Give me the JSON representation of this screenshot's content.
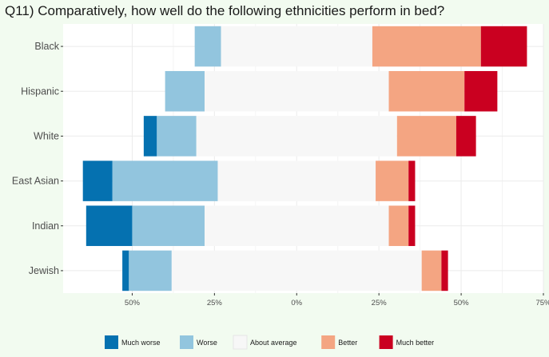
{
  "title": "Q11) Comparatively, how well do the following ethnicities perform in bed?",
  "chart_data": {
    "type": "bar",
    "orientation": "horizontal-diverging",
    "categories": [
      "Black",
      "Hispanic",
      "White",
      "East Asian",
      "Indian",
      "Jewish"
    ],
    "xlim": [
      -71,
      75
    ],
    "x_ticks": [
      -50,
      -25,
      0,
      25,
      50,
      75
    ],
    "x_tick_labels": [
      "50%",
      "25%",
      "0%",
      "25%",
      "50%",
      "75%"
    ],
    "grid": true,
    "legend_position": "bottom",
    "series": [
      {
        "name": "Much worse",
        "color": "#0571b0",
        "values": [
          0,
          0,
          4,
          9,
          14,
          2
        ]
      },
      {
        "name": "Worse",
        "color": "#92c5de",
        "values": [
          8,
          12,
          12,
          32,
          22,
          13
        ]
      },
      {
        "name": "About average",
        "color": "#f7f7f7",
        "values": [
          46,
          56,
          61,
          48,
          56,
          76
        ]
      },
      {
        "name": "Better",
        "color": "#f4a582",
        "values": [
          33,
          23,
          18,
          10,
          6,
          6
        ]
      },
      {
        "name": "Much better",
        "color": "#ca0020",
        "values": [
          14,
          10,
          6,
          2,
          2,
          2
        ]
      }
    ]
  }
}
